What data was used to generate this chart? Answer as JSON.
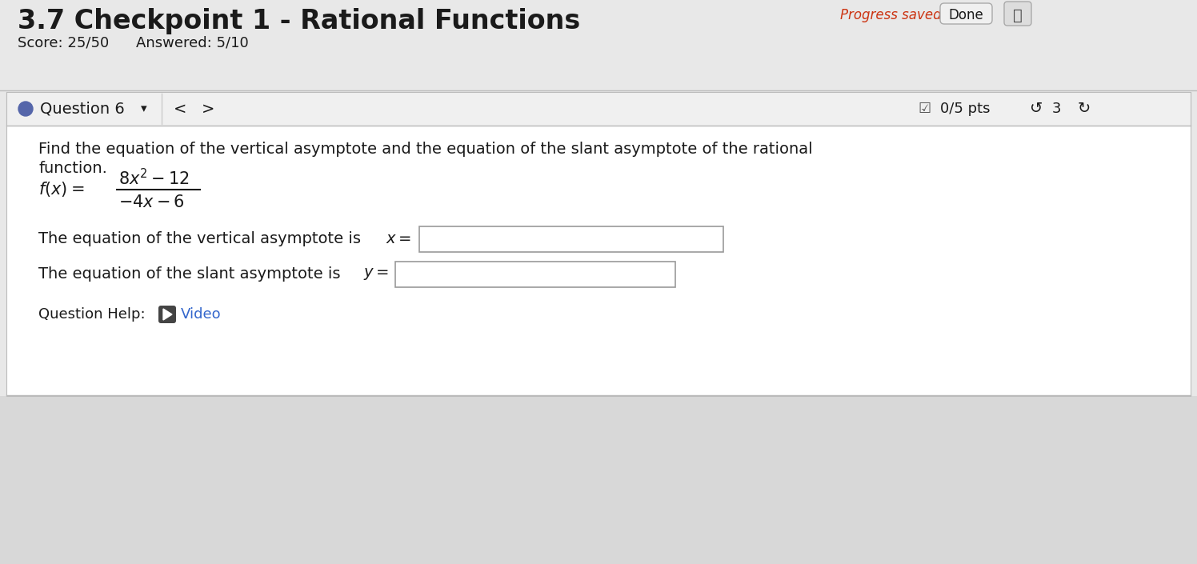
{
  "title": "3.7 Checkpoint 1 - Rational Functions",
  "title_fontsize": 24,
  "score_text": "Score: 25/50",
  "answered_text": "Answered: 5/10",
  "progress_saved_text": "Progress saved",
  "done_text": "Done",
  "question_label": "Question 6",
  "pts_text": "0/5 pts",
  "undo_num": "3",
  "instruction_line1": "Find the equation of the vertical asymptote and the equation of the slant asymptote of the rational",
  "instruction_line2": "function.",
  "help_text": "Question Help:",
  "video_text": "Video",
  "bg_color": "#d8d8d8",
  "content_bg": "#e8e8e8",
  "white_color": "#ffffff",
  "text_color": "#1a1a1a",
  "red_color": "#cc3311",
  "blue_color": "#3366cc",
  "light_gray": "#f0f0f0",
  "border_gray": "#bbbbbb",
  "dark_gray": "#444444"
}
